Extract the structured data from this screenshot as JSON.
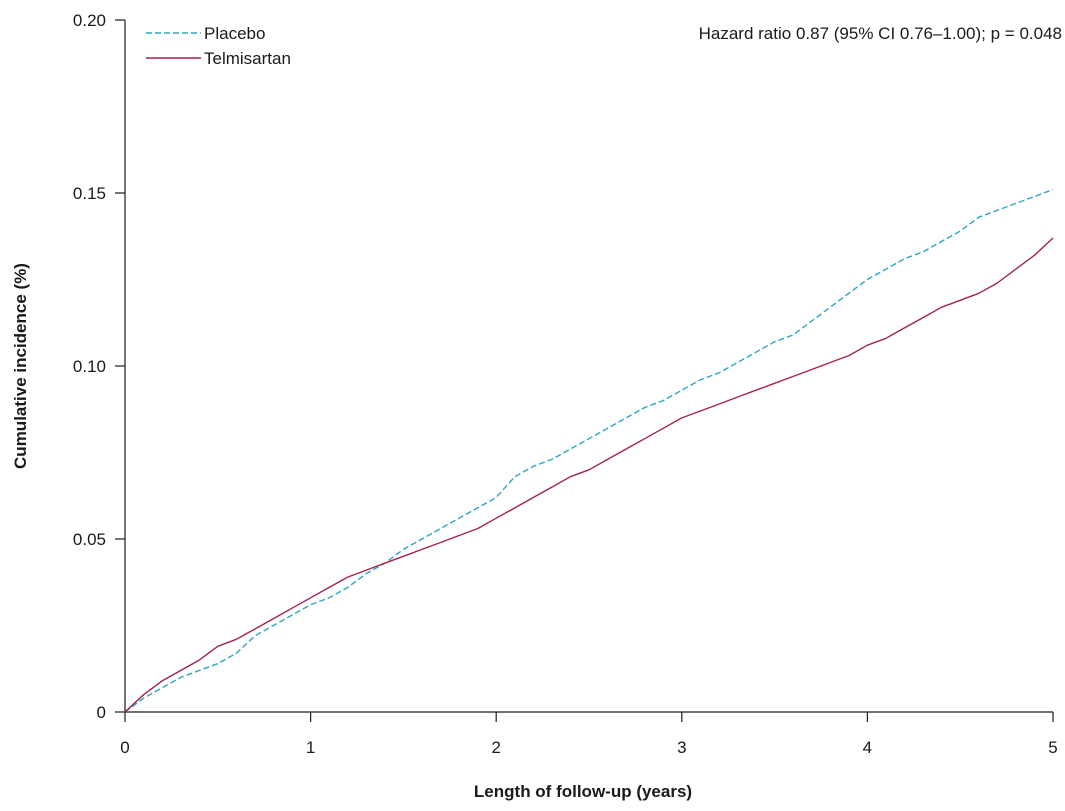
{
  "chart_data": {
    "type": "line",
    "title": "",
    "xlabel": "Length of follow-up (years)",
    "ylabel": "Cumulative incidence (%)",
    "xlim": [
      0,
      5
    ],
    "ylim": [
      0,
      0.2
    ],
    "xticks": [
      0,
      1,
      2,
      3,
      4,
      5
    ],
    "xtick_labels": [
      "0",
      "1",
      "2",
      "3",
      "4",
      "5"
    ],
    "yticks": [
      0,
      0.05,
      0.1,
      0.15,
      0.2
    ],
    "ytick_labels": [
      "0",
      "0.05",
      "0.10",
      "0.15",
      "0.20"
    ],
    "grid": false,
    "legend_position": "top-left",
    "annotation": "Hazard ratio 0.87 (95% CI 0.76–1.00); p = 0.048",
    "series": [
      {
        "name": "Placebo",
        "color": "#2aa6c4",
        "line_style": "dashed",
        "x": [
          0,
          0.1,
          0.2,
          0.3,
          0.4,
          0.5,
          0.6,
          0.7,
          0.8,
          0.9,
          1.0,
          1.1,
          1.2,
          1.3,
          1.4,
          1.5,
          1.6,
          1.7,
          1.8,
          1.9,
          2.0,
          2.1,
          2.2,
          2.3,
          2.4,
          2.5,
          2.6,
          2.7,
          2.8,
          2.9,
          3.0,
          3.1,
          3.2,
          3.3,
          3.4,
          3.5,
          3.6,
          3.7,
          3.8,
          3.9,
          4.0,
          4.1,
          4.2,
          4.3,
          4.4,
          4.5,
          4.6,
          4.7,
          4.8,
          4.9,
          5.0
        ],
        "y": [
          0,
          0.004,
          0.007,
          0.01,
          0.012,
          0.014,
          0.017,
          0.022,
          0.025,
          0.028,
          0.031,
          0.033,
          0.036,
          0.04,
          0.043,
          0.047,
          0.05,
          0.053,
          0.056,
          0.059,
          0.062,
          0.068,
          0.071,
          0.073,
          0.076,
          0.079,
          0.082,
          0.085,
          0.088,
          0.09,
          0.093,
          0.096,
          0.098,
          0.101,
          0.104,
          0.107,
          0.109,
          0.113,
          0.117,
          0.121,
          0.125,
          0.128,
          0.131,
          0.133,
          0.136,
          0.139,
          0.143,
          0.145,
          0.147,
          0.149,
          0.151
        ]
      },
      {
        "name": "Telmisartan",
        "color": "#a3244a",
        "line_style": "solid",
        "x": [
          0,
          0.1,
          0.2,
          0.3,
          0.4,
          0.5,
          0.6,
          0.7,
          0.8,
          0.9,
          1.0,
          1.1,
          1.2,
          1.3,
          1.4,
          1.5,
          1.6,
          1.7,
          1.8,
          1.9,
          2.0,
          2.1,
          2.2,
          2.3,
          2.4,
          2.5,
          2.6,
          2.7,
          2.8,
          2.9,
          3.0,
          3.1,
          3.2,
          3.3,
          3.4,
          3.5,
          3.6,
          3.7,
          3.8,
          3.9,
          4.0,
          4.1,
          4.2,
          4.3,
          4.4,
          4.5,
          4.6,
          4.7,
          4.8,
          4.9,
          5.0
        ],
        "y": [
          0,
          0.005,
          0.009,
          0.012,
          0.015,
          0.019,
          0.021,
          0.024,
          0.027,
          0.03,
          0.033,
          0.036,
          0.039,
          0.041,
          0.043,
          0.045,
          0.047,
          0.049,
          0.051,
          0.053,
          0.056,
          0.059,
          0.062,
          0.065,
          0.068,
          0.07,
          0.073,
          0.076,
          0.079,
          0.082,
          0.085,
          0.087,
          0.089,
          0.091,
          0.093,
          0.095,
          0.097,
          0.099,
          0.101,
          0.103,
          0.106,
          0.108,
          0.111,
          0.114,
          0.117,
          0.119,
          0.121,
          0.124,
          0.128,
          0.132,
          0.137
        ]
      }
    ]
  }
}
